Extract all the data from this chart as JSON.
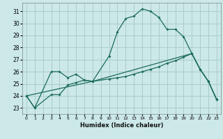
{
  "xlabel": "Humidex (Indice chaleur)",
  "bg_color": "#cce8e8",
  "grid_color": "#aacccc",
  "line_color": "#1a6b5a",
  "xlim": [
    -0.5,
    23.5
  ],
  "ylim": [
    22.5,
    31.7
  ],
  "xticks": [
    0,
    1,
    2,
    3,
    4,
    5,
    6,
    7,
    8,
    9,
    10,
    11,
    12,
    13,
    14,
    15,
    16,
    17,
    18,
    19,
    20,
    21,
    22,
    23
  ],
  "yticks": [
    23,
    24,
    25,
    26,
    27,
    28,
    29,
    30,
    31
  ],
  "series1_x": [
    0,
    1,
    3,
    4,
    5,
    6,
    7,
    8,
    10,
    11,
    12,
    13,
    14,
    15,
    16,
    17,
    18,
    19,
    20,
    21,
    22,
    23
  ],
  "series1_y": [
    24,
    23,
    26,
    26,
    25.5,
    25.8,
    25.3,
    25.2,
    27.3,
    29.3,
    30.4,
    30.6,
    31.2,
    31.0,
    30.5,
    29.5,
    29.5,
    28.9,
    27.5,
    26.2,
    25.2,
    23.7
  ],
  "series2_x": [
    0,
    1,
    3,
    4,
    5,
    6,
    7,
    8,
    10,
    11,
    12,
    13,
    14,
    15,
    16,
    17,
    18,
    19,
    20,
    21,
    22,
    23
  ],
  "series2_y": [
    24,
    23,
    24.1,
    24.1,
    24.9,
    25.1,
    25.3,
    25.2,
    25.4,
    25.5,
    25.6,
    25.8,
    26.0,
    26.2,
    26.4,
    26.7,
    26.9,
    27.2,
    27.5,
    26.2,
    25.2,
    23.7
  ],
  "series3_x": [
    0,
    8,
    20,
    21,
    22,
    23
  ],
  "series3_y": [
    24,
    25.2,
    27.5,
    26.2,
    25.2,
    23.7
  ]
}
